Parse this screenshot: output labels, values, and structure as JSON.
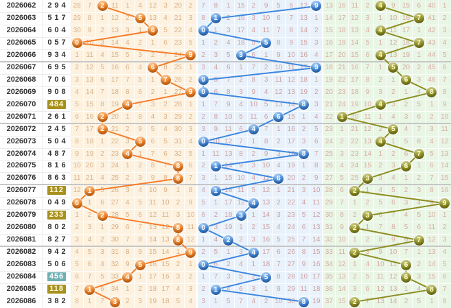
{
  "chart_data": {
    "type": "table",
    "rows": [
      {
        "period": "2026062",
        "result": "294",
        "highlight": "none"
      },
      {
        "period": "2026063",
        "result": "517",
        "highlight": "none"
      },
      {
        "period": "2026064",
        "result": "604",
        "highlight": "none"
      },
      {
        "period": "2026065",
        "result": "057",
        "highlight": "none"
      },
      {
        "period": "2026066",
        "result": "934",
        "highlight": "none"
      },
      {
        "period": "2026067",
        "result": "695",
        "highlight": "none"
      },
      {
        "period": "2026068",
        "result": "706",
        "highlight": "none"
      },
      {
        "period": "2026069",
        "result": "908",
        "highlight": "none"
      },
      {
        "period": "2026070",
        "result": "484",
        "highlight": "olive"
      },
      {
        "period": "2026071",
        "result": "261",
        "highlight": "none"
      },
      {
        "period": "2026072",
        "result": "245",
        "highlight": "none"
      },
      {
        "period": "2026073",
        "result": "504",
        "highlight": "none"
      },
      {
        "period": "2026074",
        "result": "487",
        "highlight": "none"
      },
      {
        "period": "2026075",
        "result": "816",
        "highlight": "none"
      },
      {
        "period": "2026076",
        "result": "863",
        "highlight": "none"
      },
      {
        "period": "2026077",
        "result": "112",
        "highlight": "olive"
      },
      {
        "period": "2026078",
        "result": "049",
        "highlight": "none"
      },
      {
        "period": "2026079",
        "result": "233",
        "highlight": "olive"
      },
      {
        "period": "2026080",
        "result": "802",
        "highlight": "none"
      },
      {
        "period": "2026081",
        "result": "827",
        "highlight": "none"
      },
      {
        "period": "2026082",
        "result": "942",
        "highlight": "none"
      },
      {
        "period": "2026083",
        "result": "506",
        "highlight": "none"
      },
      {
        "period": "2026084",
        "result": "456",
        "highlight": "teal"
      },
      {
        "period": "2026085",
        "result": "118",
        "highlight": "olive"
      },
      {
        "period": "2026086",
        "result": "382",
        "highlight": "none"
      }
    ],
    "highlight_colors": {
      "olive": {
        "bg": "#a8901d",
        "text": "#fffbe0"
      },
      "teal": {
        "bg": "#6fb0b4",
        "text": "#ffffff"
      }
    },
    "zones": [
      {
        "name": "hundreds",
        "bg": "#fdf2e0",
        "num_color": "#d9b088",
        "line_color": "#f57d2b",
        "ball_colors": [
          "#ffb469",
          "#f57f1e",
          "#e56500"
        ],
        "ball_text_color": "#ffffff",
        "drawn": [
          2,
          5,
          6,
          0,
          9,
          6,
          7,
          9,
          4,
          2,
          2,
          5,
          4,
          8,
          8,
          1,
          0,
          2,
          8,
          8,
          9,
          5,
          4,
          1,
          3
        ],
        "grid": [
          [
            28,
            7,
            2,
            11,
            1,
            4,
            12,
            3,
            20,
            2
          ],
          [
            29,
            8,
            1,
            12,
            2,
            5,
            13,
            4,
            21,
            3
          ],
          [
            30,
            9,
            2,
            13,
            3,
            1,
            6,
            5,
            22,
            4
          ],
          [
            0,
            10,
            3,
            14,
            4,
            2,
            1,
            6,
            23,
            5
          ],
          [
            1,
            11,
            4,
            15,
            5,
            3,
            2,
            7,
            24,
            9
          ],
          [
            2,
            12,
            5,
            16,
            6,
            4,
            6,
            8,
            25,
            1
          ],
          [
            3,
            13,
            6,
            17,
            7,
            5,
            1,
            7,
            26,
            2
          ],
          [
            4,
            14,
            7,
            18,
            8,
            6,
            2,
            1,
            27,
            9
          ],
          [
            5,
            15,
            8,
            19,
            4,
            7,
            3,
            2,
            28,
            1
          ],
          [
            6,
            16,
            2,
            20,
            1,
            8,
            4,
            3,
            29,
            2
          ],
          [
            7,
            17,
            2,
            21,
            2,
            9,
            5,
            4,
            30,
            3
          ],
          [
            8,
            18,
            1,
            22,
            3,
            5,
            6,
            5,
            31,
            4
          ],
          [
            9,
            19,
            2,
            23,
            4,
            1,
            7,
            6,
            32,
            5
          ],
          [
            10,
            20,
            3,
            24,
            1,
            2,
            8,
            7,
            8,
            6
          ],
          [
            11,
            21,
            4,
            25,
            2,
            3,
            9,
            8,
            8,
            7
          ],
          [
            12,
            1,
            5,
            26,
            3,
            4,
            10,
            9,
            1,
            8
          ],
          [
            0,
            1,
            6,
            27,
            4,
            5,
            11,
            10,
            2,
            9
          ],
          [
            1,
            2,
            2,
            28,
            5,
            6,
            12,
            11,
            3,
            10
          ],
          [
            2,
            3,
            1,
            29,
            6,
            7,
            13,
            12,
            8,
            11
          ],
          [
            3,
            4,
            2,
            30,
            7,
            8,
            14,
            13,
            8,
            12
          ],
          [
            4,
            5,
            3,
            31,
            8,
            9,
            15,
            14,
            1,
            9
          ],
          [
            5,
            6,
            4,
            32,
            9,
            5,
            16,
            15,
            2,
            1
          ],
          [
            6,
            7,
            5,
            33,
            4,
            1,
            17,
            16,
            3,
            2
          ],
          [
            7,
            1,
            6,
            34,
            1,
            2,
            18,
            17,
            4,
            3
          ],
          [
            8,
            1,
            7,
            3,
            2,
            3,
            19,
            18,
            5,
            4
          ]
        ]
      },
      {
        "name": "tens",
        "bg": "#e9f2fb",
        "num_color": "#cfa0a0",
        "line_color": "#3c86de",
        "ball_colors": [
          "#8fc3f7",
          "#3c86de",
          "#1d63b8"
        ],
        "ball_text_color": "#ffffff",
        "drawn": [
          9,
          1,
          0,
          5,
          3,
          9,
          0,
          0,
          8,
          6,
          4,
          0,
          8,
          1,
          6,
          1,
          4,
          3,
          0,
          2,
          4,
          0,
          5,
          1,
          8
        ],
        "grid": [
          [
            7,
            8,
            1,
            15,
            2,
            9,
            5,
            6,
            12,
            9
          ],
          [
            8,
            1,
            2,
            16,
            3,
            10,
            6,
            7,
            13,
            1
          ],
          [
            0,
            1,
            3,
            17,
            4,
            11,
            7,
            8,
            14,
            2
          ],
          [
            1,
            2,
            4,
            18,
            5,
            5,
            8,
            9,
            15,
            3
          ],
          [
            2,
            3,
            5,
            3,
            6,
            1,
            9,
            10,
            16,
            4
          ],
          [
            3,
            4,
            6,
            1,
            7,
            2,
            10,
            11,
            17,
            9
          ],
          [
            0,
            5,
            7,
            2,
            8,
            3,
            11,
            12,
            18,
            1
          ],
          [
            0,
            6,
            8,
            3,
            9,
            4,
            12,
            13,
            19,
            2
          ],
          [
            1,
            7,
            9,
            4,
            10,
            5,
            13,
            14,
            8,
            3
          ],
          [
            2,
            8,
            10,
            5,
            11,
            6,
            6,
            15,
            1,
            4
          ],
          [
            3,
            9,
            11,
            6,
            4,
            7,
            1,
            16,
            2,
            5
          ],
          [
            0,
            10,
            12,
            7,
            1,
            8,
            2,
            17,
            3,
            6
          ],
          [
            1,
            11,
            13,
            8,
            2,
            9,
            3,
            18,
            8,
            7
          ],
          [
            2,
            1,
            14,
            9,
            3,
            10,
            4,
            19,
            1,
            8
          ],
          [
            3,
            1,
            15,
            10,
            4,
            11,
            6,
            20,
            2,
            9
          ],
          [
            4,
            1,
            16,
            11,
            5,
            12,
            1,
            21,
            3,
            10
          ],
          [
            5,
            1,
            17,
            12,
            4,
            13,
            2,
            22,
            4,
            11
          ],
          [
            6,
            2,
            18,
            3,
            1,
            14,
            3,
            23,
            5,
            12
          ],
          [
            0,
            3,
            19,
            1,
            2,
            15,
            4,
            24,
            6,
            13
          ],
          [
            1,
            4,
            2,
            2,
            3,
            16,
            5,
            25,
            7,
            14
          ],
          [
            2,
            5,
            1,
            3,
            4,
            17,
            6,
            26,
            8,
            15
          ],
          [
            0,
            6,
            2,
            4,
            1,
            18,
            7,
            27,
            9,
            16
          ],
          [
            1,
            7,
            3,
            5,
            2,
            5,
            8,
            28,
            10,
            17
          ],
          [
            2,
            1,
            4,
            6,
            3,
            1,
            9,
            29,
            11,
            18
          ],
          [
            3,
            1,
            5,
            7,
            4,
            2,
            10,
            30,
            8,
            19
          ]
        ]
      },
      {
        "name": "units",
        "bg": "#e9f6e5",
        "num_color": "#d9aba0",
        "line_color": "#8d8d20",
        "ball_colors": [
          "#bcbc5e",
          "#90901f",
          "#6c6c0b"
        ],
        "ball_text_color": "#fdfdd0",
        "drawn": [
          4,
          7,
          4,
          7,
          4,
          5,
          6,
          8,
          4,
          1,
          5,
          4,
          7,
          6,
          3,
          2,
          9,
          3,
          2,
          7,
          2,
          6,
          6,
          8,
          2
        ],
        "grid": [
          [
            13,
            16,
            11,
            2,
            4,
            9,
            15,
            6,
            40,
            1
          ],
          [
            14,
            17,
            12,
            3,
            1,
            10,
            16,
            7,
            41,
            2
          ],
          [
            15,
            18,
            13,
            4,
            4,
            11,
            17,
            1,
            42,
            3
          ],
          [
            16,
            19,
            14,
            5,
            1,
            12,
            18,
            7,
            43,
            4
          ],
          [
            17,
            20,
            15,
            6,
            4,
            13,
            19,
            1,
            44,
            5
          ],
          [
            18,
            21,
            16,
            7,
            1,
            5,
            20,
            2,
            45,
            6
          ],
          [
            19,
            22,
            17,
            8,
            2,
            1,
            6,
            3,
            46,
            7
          ],
          [
            20,
            23,
            18,
            9,
            3,
            2,
            1,
            4,
            8,
            8
          ],
          [
            21,
            24,
            19,
            10,
            4,
            3,
            2,
            5,
            1,
            9
          ],
          [
            22,
            1,
            20,
            11,
            1,
            4,
            3,
            6,
            2,
            10
          ],
          [
            23,
            1,
            21,
            12,
            2,
            5,
            4,
            7,
            3,
            11
          ],
          [
            24,
            2,
            22,
            13,
            4,
            1,
            5,
            8,
            4,
            12
          ],
          [
            25,
            3,
            23,
            14,
            1,
            2,
            6,
            7,
            5,
            13
          ],
          [
            26,
            4,
            24,
            15,
            2,
            3,
            6,
            1,
            6,
            14
          ],
          [
            27,
            5,
            25,
            3,
            3,
            4,
            1,
            2,
            7,
            15
          ],
          [
            28,
            6,
            2,
            1,
            4,
            5,
            2,
            3,
            8,
            16
          ],
          [
            29,
            7,
            1,
            2,
            5,
            6,
            3,
            4,
            9,
            9
          ],
          [
            30,
            8,
            2,
            3,
            6,
            7,
            4,
            5,
            10,
            1
          ],
          [
            31,
            9,
            2,
            1,
            7,
            8,
            5,
            6,
            11,
            2
          ],
          [
            32,
            10,
            1,
            2,
            8,
            9,
            6,
            7,
            12,
            3
          ],
          [
            33,
            11,
            2,
            3,
            9,
            10,
            7,
            1,
            13,
            4
          ],
          [
            34,
            12,
            1,
            4,
            10,
            11,
            6,
            2,
            14,
            5
          ],
          [
            35,
            13,
            2,
            5,
            11,
            12,
            6,
            3,
            15,
            6
          ],
          [
            36,
            14,
            3,
            6,
            12,
            13,
            1,
            4,
            8,
            7
          ],
          [
            37,
            15,
            2,
            7,
            13,
            14,
            2,
            5,
            1,
            8
          ]
        ]
      }
    ]
  }
}
